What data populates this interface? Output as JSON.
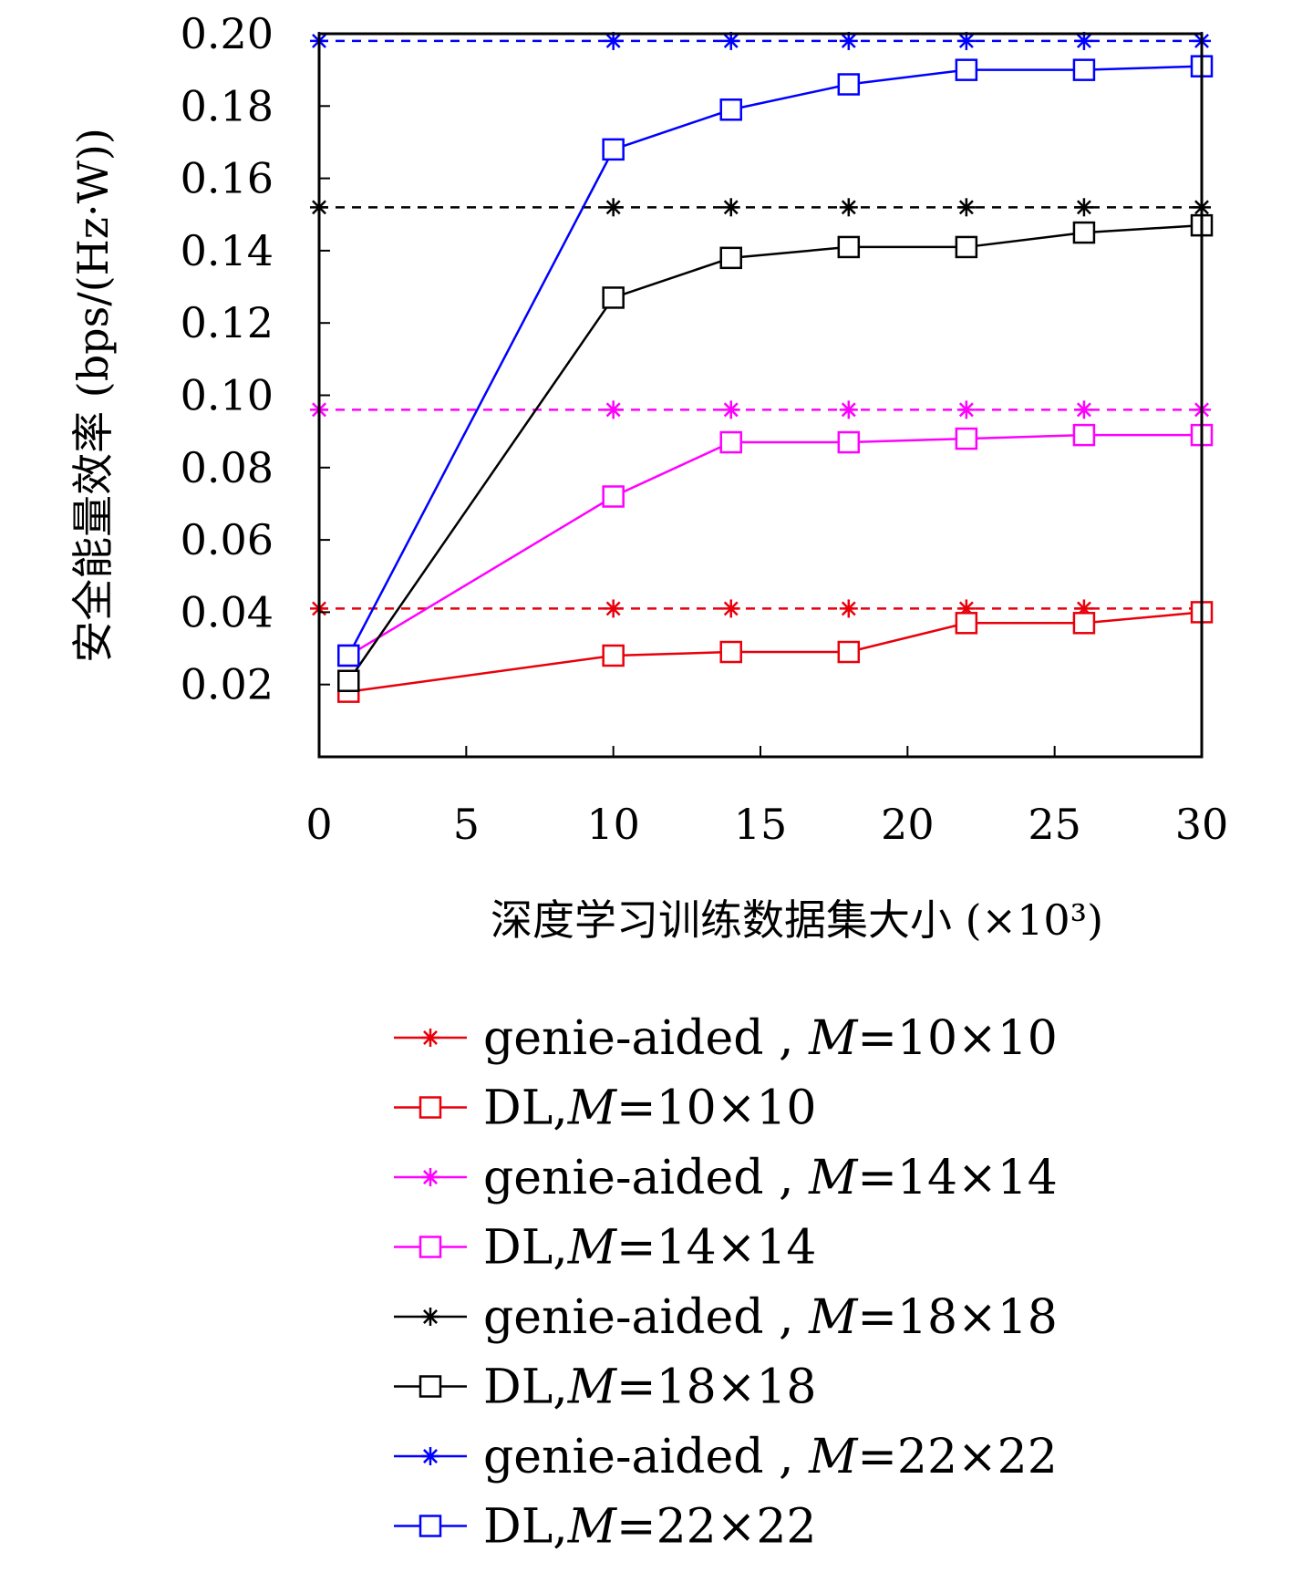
{
  "chart_data": {
    "type": "line",
    "xlabel": "深度学习训练数据集大小 (×10³)",
    "ylabel": "安全能量效率 (bps/(Hz·W))",
    "xlim": [
      0,
      30
    ],
    "ylim": [
      0,
      0.2
    ],
    "x_ticks": [
      "0",
      "5",
      "10",
      "15",
      "20",
      "25",
      "30"
    ],
    "y_ticks": [
      "0.02",
      "0.04",
      "0.06",
      "0.08",
      "0.10",
      "0.12",
      "0.14",
      "0.16",
      "0.18",
      "0.20"
    ],
    "grid": false,
    "legend_position": "bottom",
    "x": [
      1,
      10,
      14,
      18,
      22,
      26,
      30
    ],
    "series": [
      {
        "name": "genie-aided , M=10×10",
        "prefix": "genie-aided , ",
        "m": "10×10",
        "marker": "star",
        "dash": true,
        "color": "#e8000b",
        "values": [
          0.041,
          0.041,
          0.041,
          0.041,
          0.041,
          0.041,
          0.041
        ]
      },
      {
        "name": "DL,M=10×10",
        "prefix": "DL,",
        "m": "10×10",
        "marker": "square",
        "dash": false,
        "color": "#e8000b",
        "values": [
          0.018,
          0.028,
          0.029,
          0.029,
          0.037,
          0.037,
          0.04
        ]
      },
      {
        "name": "genie-aided , M=14×14",
        "prefix": "genie-aided , ",
        "m": "14×14",
        "marker": "star",
        "dash": true,
        "color": "#ff00ff",
        "values": [
          0.096,
          0.096,
          0.096,
          0.096,
          0.096,
          0.096,
          0.096
        ]
      },
      {
        "name": "DL,M=14×14",
        "prefix": "DL,",
        "m": "14×14",
        "marker": "square",
        "dash": false,
        "color": "#ff00ff",
        "values": [
          0.028,
          0.072,
          0.087,
          0.087,
          0.088,
          0.089,
          0.089
        ]
      },
      {
        "name": "genie-aided , M=18×18",
        "prefix": "genie-aided , ",
        "m": "18×18",
        "marker": "star",
        "dash": true,
        "color": "#000000",
        "values": [
          0.152,
          0.152,
          0.152,
          0.152,
          0.152,
          0.152,
          0.152
        ]
      },
      {
        "name": "DL,M=18×18",
        "prefix": "DL,",
        "m": "18×18",
        "marker": "square",
        "dash": false,
        "color": "#000000",
        "values": [
          0.021,
          0.127,
          0.138,
          0.141,
          0.141,
          0.145,
          0.147
        ]
      },
      {
        "name": "genie-aided , M=22×22",
        "prefix": "genie-aided , ",
        "m": "22×22",
        "marker": "star",
        "dash": true,
        "color": "#0000ff",
        "values": [
          0.198,
          0.198,
          0.198,
          0.198,
          0.198,
          0.198,
          0.198
        ]
      },
      {
        "name": "DL,M=22×22",
        "prefix": "DL,",
        "m": "22×22",
        "marker": "square",
        "dash": false,
        "color": "#0000ff",
        "values": [
          0.028,
          0.168,
          0.179,
          0.186,
          0.19,
          0.19,
          0.191
        ]
      }
    ]
  }
}
